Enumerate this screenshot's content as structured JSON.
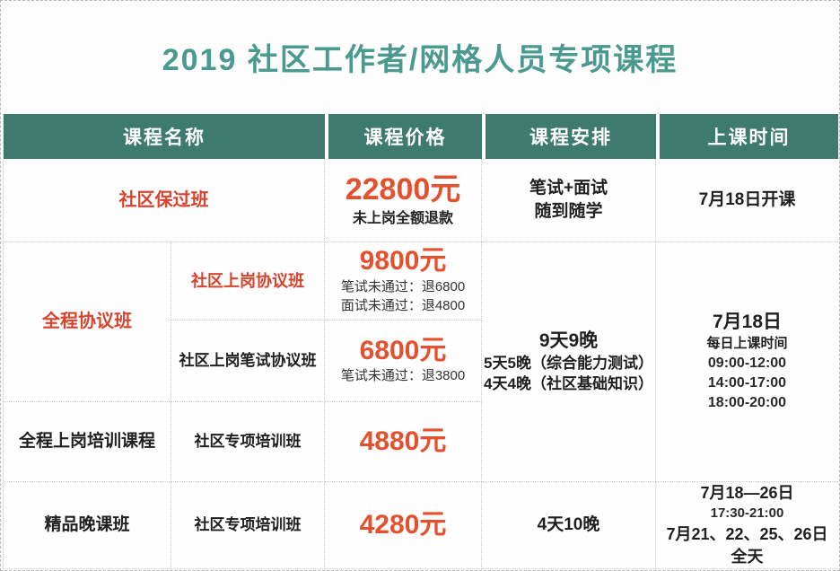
{
  "title": "2019 社区工作者/网格人员专项课程",
  "colors": {
    "title_teal": "#4a9a8f",
    "header_green": "#3e7a6e",
    "label_red": "#d8432e",
    "price_red": "#e5502e"
  },
  "table": {
    "headers": [
      "课程名称",
      "课程价格",
      "课程安排",
      "上课时间"
    ],
    "row1": {
      "name": "社区保过班",
      "price": "22800元",
      "price_note": "未上岗全额退款",
      "schedule": [
        "笔试+面试",
        "随到随学"
      ],
      "time": "7月18日开课"
    },
    "group": {
      "name": "全程协议班",
      "sub_rows": [
        {
          "name": "社区上岗协议班",
          "price": "9800元",
          "notes": [
            "笔试未通过：退6800",
            "面试未通过：退4800"
          ]
        },
        {
          "name": "社区上岗笔试协议班",
          "price": "6800元",
          "notes": [
            "笔试未通过：退3800"
          ]
        }
      ],
      "schedule": [
        "9天9晚",
        "5天5晚（综合能力测试）",
        "4天4晚（社区基础知识）"
      ],
      "time": [
        "7月18日",
        "每日上课时间",
        "09:00-12:00",
        "14:00-17:00",
        "18:00-20:00"
      ]
    },
    "row_training": {
      "name": "全程上岗培训课程",
      "subname": "社区专项培训班",
      "price": "4880元"
    },
    "row_evening": {
      "name": "精品晚课班",
      "subname": "社区专项培训班",
      "price": "4280元",
      "schedule": "4天10晚",
      "time": [
        "7月18—26日",
        "17:30-21:00",
        "7月21、22、25、26日全天"
      ]
    }
  }
}
